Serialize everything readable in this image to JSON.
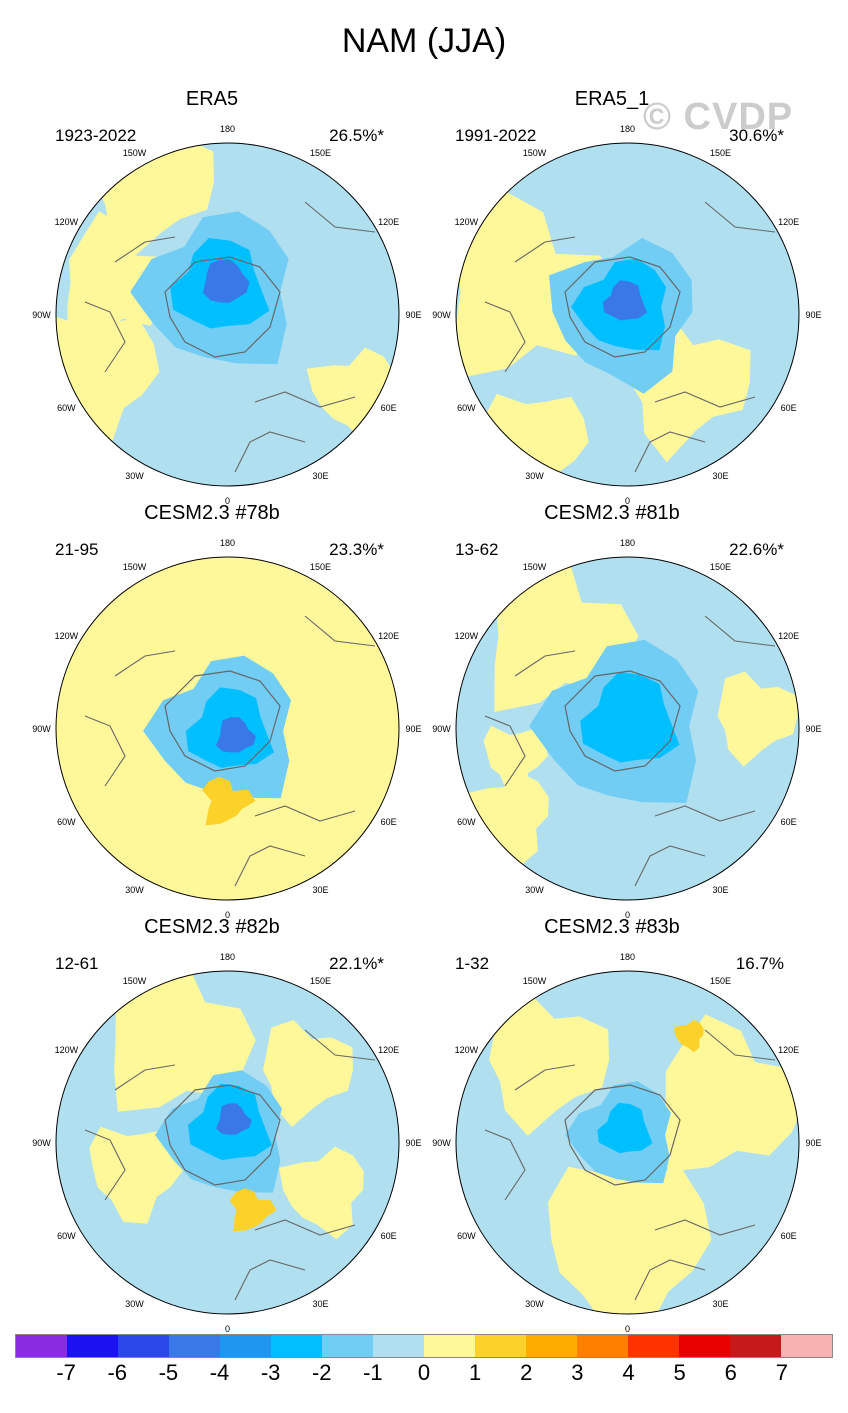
{
  "figure": {
    "title": "NAM (JJA)",
    "watermark": "© CVDP"
  },
  "lon_labels": [
    "180",
    "150E",
    "120E",
    "90E",
    "60E",
    "30E",
    "0",
    "30W",
    "60W",
    "90W",
    "120W",
    "150W"
  ],
  "panels": [
    {
      "title": "ERA5",
      "years": "1923-2022",
      "pct": "26.5%*"
    },
    {
      "title": "ERA5_1",
      "years": "1991-2022",
      "pct": "30.6%*"
    },
    {
      "title": "CESM2.3 #78b",
      "years": "21-95",
      "pct": "23.3%*"
    },
    {
      "title": "CESM2.3 #81b",
      "years": "13-62",
      "pct": "22.6%*"
    },
    {
      "title": "CESM2.3 #82b",
      "years": "12-61",
      "pct": "22.1%*"
    },
    {
      "title": "CESM2.3 #83b",
      "years": "1-32",
      "pct": "16.7%"
    }
  ],
  "colorbar": {
    "labels": [
      "-7",
      "-6",
      "-5",
      "-4",
      "-3",
      "-2",
      "-1",
      "0",
      "1",
      "2",
      "3",
      "4",
      "5",
      "6",
      "7"
    ],
    "colors": [
      "#8a2be2",
      "#1a12f0",
      "#2b47e8",
      "#3a78e8",
      "#1f96f0",
      "#00bfff",
      "#72cdf5",
      "#b0e0f0",
      "#fff89a",
      "#fcd12a",
      "#ffae00",
      "#ff7f00",
      "#ff3300",
      "#e80000",
      "#c41a1a",
      "#f8b2b2"
    ]
  },
  "fill_colors": {
    "neg3": "#00bfff",
    "neg2": "#72cdf5",
    "neg1": "#b0e0f0",
    "pos0": "#fff89a",
    "pos1": "#fcd12a",
    "neg4": "#3a78e8"
  }
}
